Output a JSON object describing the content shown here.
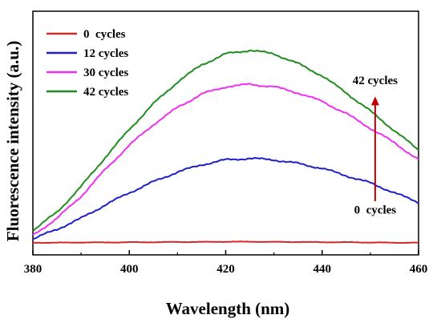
{
  "chart_data": {
    "type": "line",
    "xlabel": "Wavelength (nm)",
    "ylabel": "Fluorescence intensity (a.u.)",
    "xlim": [
      380,
      460
    ],
    "ylim": [
      0,
      100
    ],
    "xticks": [
      380,
      400,
      420,
      440,
      460
    ],
    "yticks": [],
    "grid": false,
    "legend_position": "top-left",
    "series": [
      {
        "name": "0  cycles",
        "color": "#d42a2a",
        "x": [
          380,
          385,
          390,
          395,
          400,
          405,
          410,
          415,
          420,
          425,
          430,
          435,
          440,
          445,
          450,
          455,
          460
        ],
        "y": [
          5.0,
          5.0,
          5.1,
          5.1,
          5.2,
          5.2,
          5.3,
          5.3,
          5.4,
          5.4,
          5.3,
          5.3,
          5.2,
          5.2,
          5.1,
          5.0,
          5.0
        ]
      },
      {
        "name": "12 cycles",
        "color": "#1f1fc8",
        "x": [
          380,
          385,
          390,
          395,
          400,
          405,
          410,
          415,
          420,
          425,
          430,
          435,
          440,
          445,
          450,
          455,
          460
        ],
        "y": [
          6.5,
          10.5,
          15.0,
          20.5,
          25.5,
          30.0,
          34.0,
          37.0,
          39.0,
          39.6,
          39.0,
          37.5,
          35.5,
          32.5,
          29.5,
          25.5,
          21.5
        ]
      },
      {
        "name": "30 cycles",
        "color": "#f030f0",
        "x": [
          380,
          385,
          390,
          395,
          400,
          405,
          410,
          415,
          420,
          425,
          430,
          435,
          440,
          445,
          450,
          455,
          460
        ],
        "y": [
          8.0,
          15.0,
          24.0,
          35.0,
          45.0,
          53.5,
          60.5,
          66.0,
          69.0,
          70.0,
          69.0,
          66.5,
          63.0,
          58.0,
          52.0,
          46.0,
          39.0
        ]
      },
      {
        "name": "42 cycles",
        "color": "#1f8c1f",
        "x": [
          380,
          385,
          390,
          395,
          400,
          405,
          410,
          415,
          420,
          425,
          430,
          435,
          440,
          445,
          450,
          455,
          460
        ],
        "y": [
          10.0,
          17.5,
          28.0,
          40.0,
          51.5,
          62.0,
          71.0,
          78.0,
          82.5,
          84.0,
          82.5,
          78.5,
          73.5,
          66.5,
          59.0,
          51.0,
          43.0
        ]
      }
    ],
    "annotations": [
      {
        "text": "42 cycles",
        "x": 451,
        "y": 70
      },
      {
        "text": "0  cycles",
        "x": 451,
        "y": 17
      }
    ],
    "arrow": {
      "x": 451,
      "y_from": 22,
      "y_to": 65,
      "color": "#c00000"
    }
  }
}
